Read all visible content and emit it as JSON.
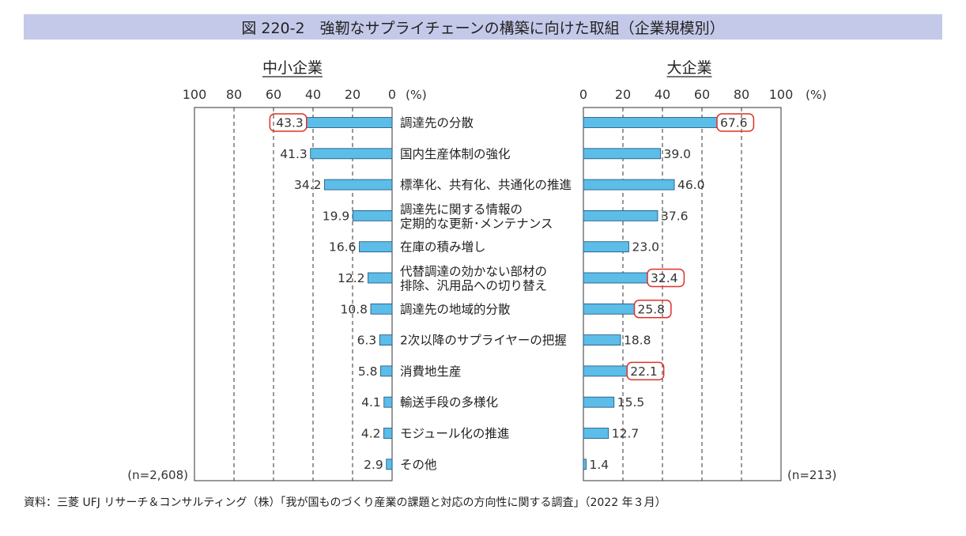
{
  "title": "図 220-2　強靭なサプライチェーンの構築に向けた取組（企業規模別）",
  "source": "資料：三菱 UFJ リサーチ＆コンサルティング（株）「我が国ものづくり産業の課題と対応の方向性に関する調査」（2022 年３月）",
  "chart_data": {
    "type": "bar",
    "orientation": "horizontal-butterfly",
    "categories": [
      [
        "調達先の分散"
      ],
      [
        "国内生産体制の強化"
      ],
      [
        "標準化、共有化、共通化の推進"
      ],
      [
        "調達先に関する情報の",
        "定期的な更新･メンテナンス"
      ],
      [
        "在庫の積み増し"
      ],
      [
        "代替調達の効かない部材の",
        "排除、汎用品への切り替え"
      ],
      [
        "調達先の地域的分散"
      ],
      [
        "2次以降のサプライヤーの把握"
      ],
      [
        "消費地生産"
      ],
      [
        "輸送手段の多様化"
      ],
      [
        "モジュール化の推進"
      ],
      [
        "その他"
      ]
    ],
    "series": [
      {
        "name": "中小企業",
        "n_label": "(n=2,608)",
        "values": [
          43.3,
          41.3,
          34.2,
          19.9,
          16.6,
          12.2,
          10.8,
          6.3,
          5.8,
          4.1,
          4.2,
          2.9
        ],
        "value_labels": [
          "43.3",
          "41.3",
          "34.2",
          "19.9",
          "16.6",
          "12.2",
          "10.8",
          "6.3",
          "5.8",
          "4.1",
          "4.2",
          "2.9"
        ],
        "highlighted": [
          0
        ],
        "ticks": [
          "100",
          "80",
          "60",
          "40",
          "20",
          "0"
        ],
        "tick_values": [
          100,
          80,
          60,
          40,
          20,
          0
        ]
      },
      {
        "name": "大企業",
        "n_label": "(n=213)",
        "values": [
          67.6,
          39.0,
          46.0,
          37.6,
          23.0,
          32.4,
          25.8,
          18.8,
          22.1,
          15.5,
          12.7,
          1.4
        ],
        "value_labels": [
          "67.6",
          "39.0",
          "46.0",
          "37.6",
          "23.0",
          "32.4",
          "25.8",
          "18.8",
          "22.1",
          "15.5",
          "12.7",
          "1.4"
        ],
        "highlighted": [
          0,
          5,
          6,
          8
        ],
        "ticks": [
          "0",
          "20",
          "40",
          "60",
          "80",
          "100"
        ],
        "tick_values": [
          0,
          20,
          40,
          60,
          80,
          100
        ]
      }
    ],
    "unit_label": "(%)",
    "xlim": [
      0,
      100
    ],
    "grid": "dashed-vertical",
    "bar_color": "#5bbde8",
    "highlight_color": "#e0302a"
  }
}
